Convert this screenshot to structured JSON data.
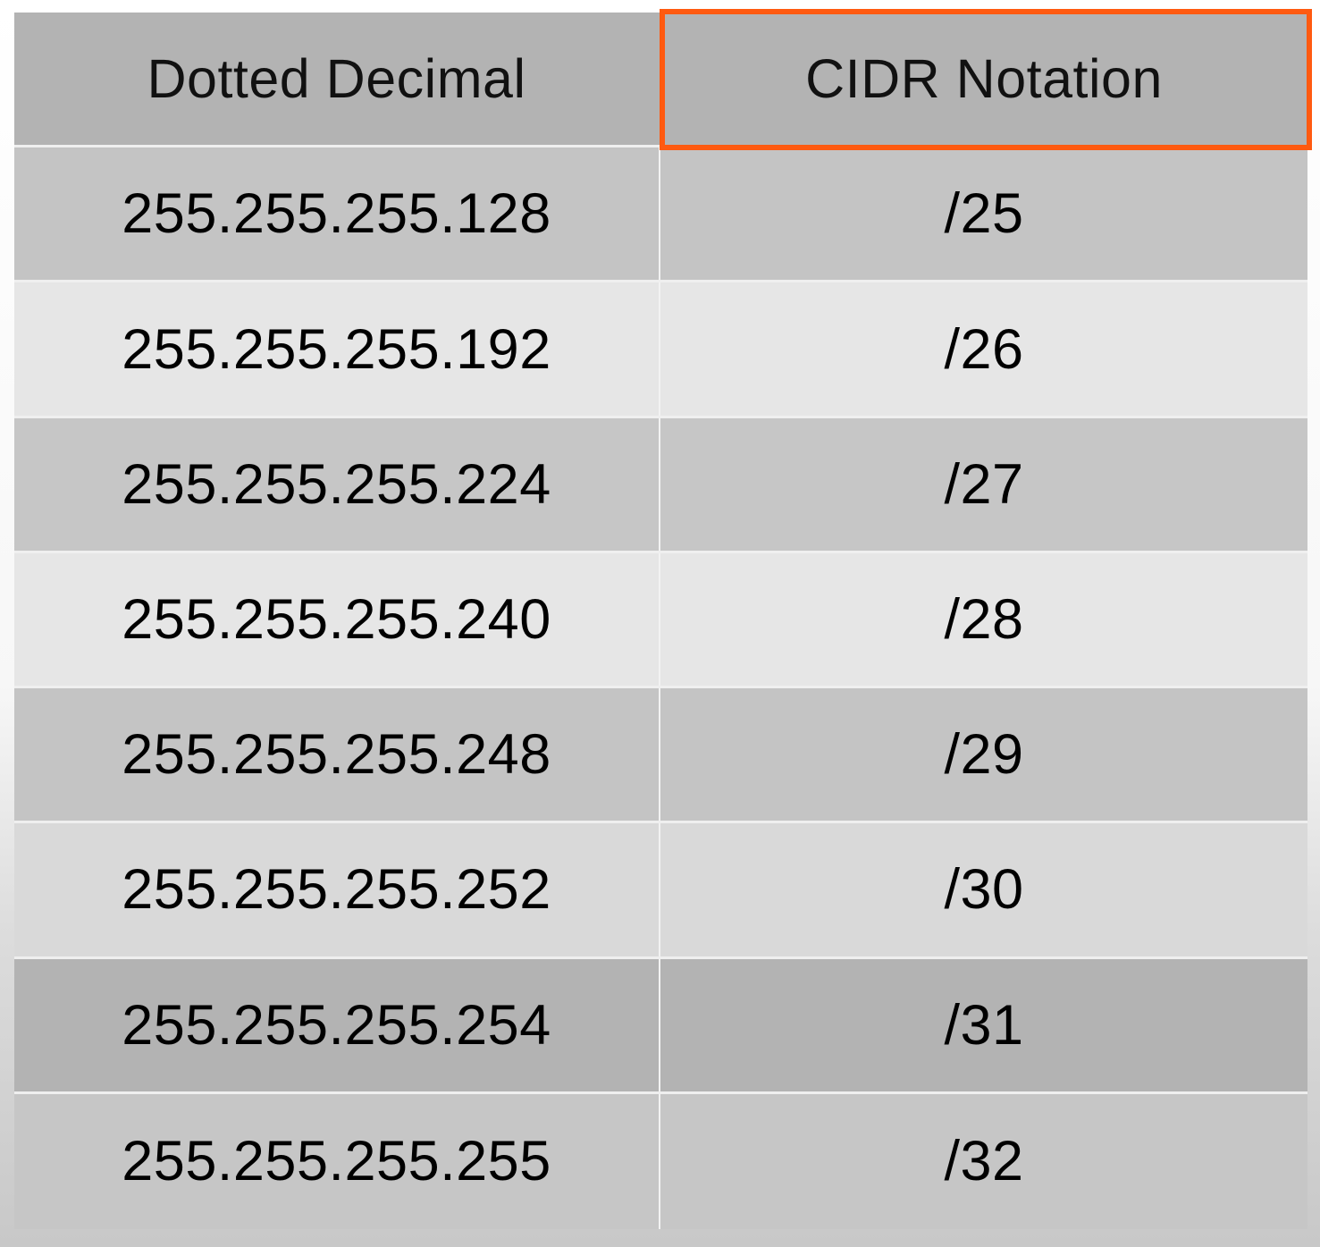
{
  "table": {
    "headers": [
      "Dotted Decimal",
      "CIDR Notation"
    ],
    "header_bg": "#b3b3b3",
    "rows": [
      {
        "dotted": "255.255.255.128",
        "cidr": "/25",
        "bg": "#c4c4c4"
      },
      {
        "dotted": "255.255.255.192",
        "cidr": "/26",
        "bg": "#e6e6e6"
      },
      {
        "dotted": "255.255.255.224",
        "cidr": "/27",
        "bg": "#c6c6c6"
      },
      {
        "dotted": "255.255.255.240",
        "cidr": "/28",
        "bg": "#e6e6e6"
      },
      {
        "dotted": "255.255.255.248",
        "cidr": "/29",
        "bg": "#c4c4c4"
      },
      {
        "dotted": "255.255.255.252",
        "cidr": "/30",
        "bg": "#d9d9d9"
      },
      {
        "dotted": "255.255.255.254",
        "cidr": "/31",
        "bg": "#b3b3b3"
      },
      {
        "dotted": "255.255.255.255",
        "cidr": "/32",
        "bg": "#c6c6c6"
      }
    ]
  },
  "highlight": {
    "target": "CIDR Notation header",
    "color": "#ff5a10"
  }
}
